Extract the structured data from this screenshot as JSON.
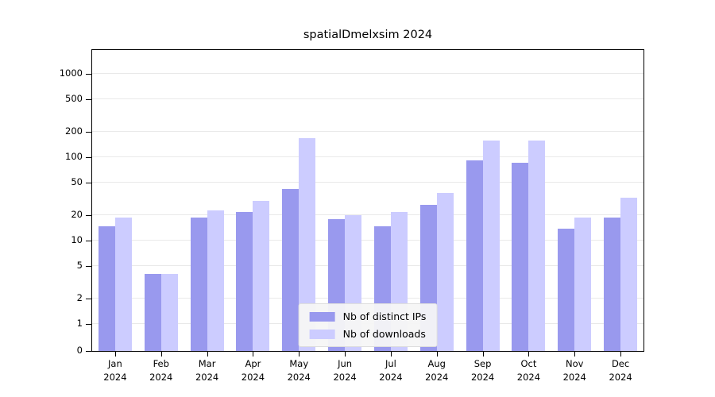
{
  "title": "spatialDmelxsim 2024",
  "colors": {
    "distinct_ips": "#9999ee",
    "downloads": "#ccccff",
    "grid": "#e9e9e9",
    "axis": "#000000",
    "background": "#ffffff"
  },
  "chart_data": {
    "type": "bar",
    "title": "spatialDmelxsim 2024",
    "categories": [
      "Jan",
      "Feb",
      "Mar",
      "Apr",
      "May",
      "Jun",
      "Jul",
      "Aug",
      "Sep",
      "Oct",
      "Nov",
      "Dec"
    ],
    "year_label": "2024",
    "series": [
      {
        "name": "Nb of distinct IPs",
        "color": "#9999ee",
        "values": [
          15,
          4,
          19,
          22,
          42,
          18,
          15,
          27,
          92,
          85,
          14,
          19
        ]
      },
      {
        "name": "Nb of downloads",
        "color": "#ccccff",
        "values": [
          19,
          4,
          23,
          30,
          170,
          20,
          22,
          37,
          160,
          160,
          19,
          33
        ]
      }
    ],
    "yticks": [
      0,
      1,
      2,
      5,
      10,
      20,
      50,
      100,
      200,
      500,
      1000
    ],
    "ylim": [
      0,
      1000
    ],
    "yscale": "log-with-zero-baseline",
    "xlabel": "",
    "ylabel": "",
    "grid": true,
    "legend_position": "lower center (inside plot)"
  }
}
